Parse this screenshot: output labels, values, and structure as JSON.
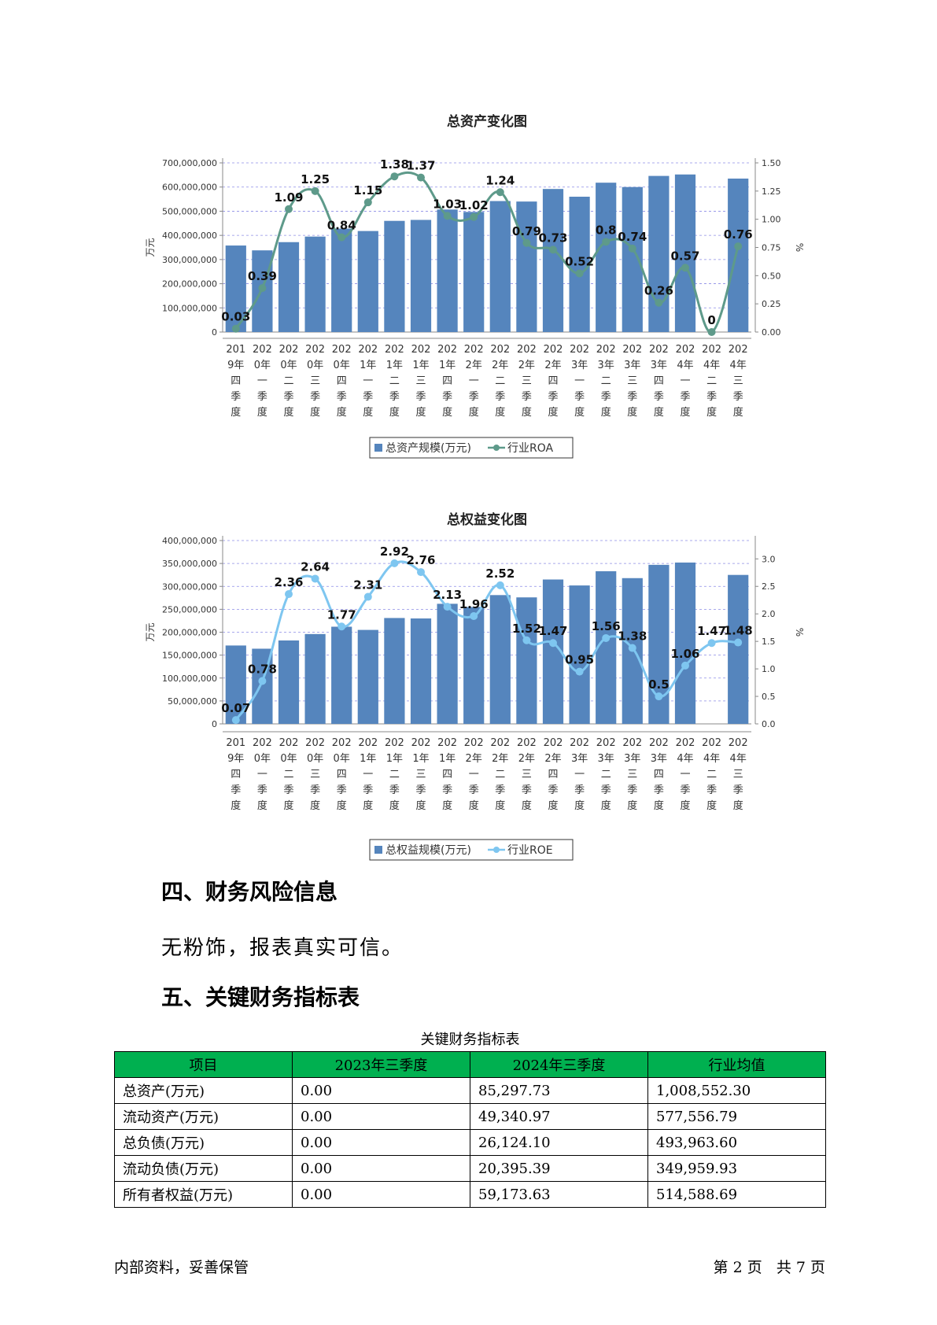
{
  "chart_data": [
    {
      "type": "bar",
      "title": "总资产变化图",
      "ylabel": "万元",
      "y2label": "%",
      "ylim": [
        0,
        700000000
      ],
      "y2lim": [
        0,
        1.5
      ],
      "yticks": [
        "0",
        "100,000,000",
        "200,000,000",
        "300,000,000",
        "400,000,000",
        "500,000,000",
        "600,000,000",
        "700,000,000"
      ],
      "y2ticks": [
        "0.00",
        "0.25",
        "0.50",
        "0.75",
        "1.00",
        "1.25",
        "1.50"
      ],
      "categories": [
        [
          "201",
          "9年",
          "四",
          "季",
          "度"
        ],
        [
          "202",
          "0年",
          "一",
          "季",
          "度"
        ],
        [
          "202",
          "0年",
          "二",
          "季",
          "度"
        ],
        [
          "202",
          "0年",
          "三",
          "季",
          "度"
        ],
        [
          "202",
          "0年",
          "四",
          "季",
          "度"
        ],
        [
          "202",
          "1年",
          "一",
          "季",
          "度"
        ],
        [
          "202",
          "1年",
          "二",
          "季",
          "度"
        ],
        [
          "202",
          "1年",
          "三",
          "季",
          "度"
        ],
        [
          "202",
          "1年",
          "四",
          "季",
          "度"
        ],
        [
          "202",
          "2年",
          "一",
          "季",
          "度"
        ],
        [
          "202",
          "2年",
          "二",
          "季",
          "度"
        ],
        [
          "202",
          "2年",
          "三",
          "季",
          "度"
        ],
        [
          "202",
          "2年",
          "四",
          "季",
          "度"
        ],
        [
          "202",
          "3年",
          "一",
          "季",
          "度"
        ],
        [
          "202",
          "3年",
          "二",
          "季",
          "度"
        ],
        [
          "202",
          "3年",
          "三",
          "季",
          "度"
        ],
        [
          "202",
          "3年",
          "四",
          "季",
          "度"
        ],
        [
          "202",
          "4年",
          "一",
          "季",
          "度"
        ],
        [
          "202",
          "4年",
          "二",
          "季",
          "度"
        ],
        [
          "202",
          "4年",
          "三",
          "季",
          "度"
        ]
      ],
      "series": [
        {
          "name": "总资产规模(万元)",
          "type": "bar",
          "color": "#5585bd",
          "values": [
            358000000,
            338000000,
            372000000,
            395000000,
            428000000,
            418000000,
            460000000,
            464000000,
            507000000,
            497000000,
            542000000,
            540000000,
            592000000,
            560000000,
            618000000,
            600000000,
            646000000,
            652000000,
            null,
            635000000
          ]
        },
        {
          "name": "行业ROA",
          "type": "line",
          "color": "#5e9a8a",
          "values": [
            0.03,
            0.39,
            1.09,
            1.25,
            0.84,
            1.15,
            1.38,
            1.37,
            1.03,
            1.02,
            1.24,
            0.79,
            0.73,
            0.52,
            0.8,
            0.74,
            0.26,
            0.57,
            0,
            0.76
          ],
          "labels": [
            "0.03",
            "0.39",
            "1.09",
            "1.25",
            "0.84",
            "1.15",
            "1.38",
            "1.37",
            "1.03",
            "1.02",
            "1.24",
            "0.79",
            "0.73",
            "0.52",
            "0.8",
            "0.74",
            "0.26",
            "0.57",
            "0",
            "0.76"
          ]
        }
      ],
      "grid": true,
      "legend": "bottom"
    },
    {
      "type": "bar",
      "title": "总权益变化图",
      "ylabel": "万元",
      "y2label": "%",
      "ylim": [
        0,
        400000000
      ],
      "y2lim": [
        0,
        3.3333
      ],
      "yticks": [
        "0",
        "50,000,000",
        "100,000,000",
        "150,000,000",
        "200,000,000",
        "250,000,000",
        "300,000,000",
        "350,000,000",
        "400,000,000"
      ],
      "y2ticks": [
        "0.0",
        "0.5",
        "1.0",
        "1.5",
        "2.0",
        "2.5",
        "3.0"
      ],
      "categories": [
        [
          "201",
          "9年",
          "四",
          "季",
          "度"
        ],
        [
          "202",
          "0年",
          "一",
          "季",
          "度"
        ],
        [
          "202",
          "0年",
          "二",
          "季",
          "度"
        ],
        [
          "202",
          "0年",
          "三",
          "季",
          "度"
        ],
        [
          "202",
          "0年",
          "四",
          "季",
          "度"
        ],
        [
          "202",
          "1年",
          "一",
          "季",
          "度"
        ],
        [
          "202",
          "1年",
          "二",
          "季",
          "度"
        ],
        [
          "202",
          "1年",
          "三",
          "季",
          "度"
        ],
        [
          "202",
          "1年",
          "四",
          "季",
          "度"
        ],
        [
          "202",
          "2年",
          "一",
          "季",
          "度"
        ],
        [
          "202",
          "2年",
          "二",
          "季",
          "度"
        ],
        [
          "202",
          "2年",
          "三",
          "季",
          "度"
        ],
        [
          "202",
          "2年",
          "四",
          "季",
          "度"
        ],
        [
          "202",
          "3年",
          "一",
          "季",
          "度"
        ],
        [
          "202",
          "3年",
          "二",
          "季",
          "度"
        ],
        [
          "202",
          "3年",
          "三",
          "季",
          "度"
        ],
        [
          "202",
          "3年",
          "四",
          "季",
          "度"
        ],
        [
          "202",
          "4年",
          "一",
          "季",
          "度"
        ],
        [
          "202",
          "4年",
          "二",
          "季",
          "度"
        ],
        [
          "202",
          "4年",
          "三",
          "季",
          "度"
        ]
      ],
      "series": [
        {
          "name": "总权益规模(万元)",
          "type": "bar",
          "color": "#5585bd",
          "values": [
            171000000,
            164000000,
            182000000,
            196000000,
            212000000,
            205000000,
            231000000,
            230000000,
            262000000,
            255000000,
            281000000,
            276000000,
            315000000,
            302000000,
            333000000,
            318000000,
            347000000,
            352000000,
            null,
            325000000
          ]
        },
        {
          "name": "行业ROE",
          "type": "line",
          "color": "#7ec6f0",
          "values": [
            0.07,
            0.78,
            2.36,
            2.64,
            1.77,
            2.31,
            2.92,
            2.76,
            2.13,
            1.96,
            2.52,
            1.52,
            1.47,
            0.95,
            1.56,
            1.38,
            0.5,
            1.06,
            1.47,
            1.48
          ],
          "labels": [
            "0.07",
            "0.78",
            "2.36",
            "2.64",
            "1.77",
            "2.31",
            "2.92",
            "2.76",
            "2.13",
            "1.96",
            "2.52",
            "1.52",
            "1.47",
            "0.95",
            "1.56",
            "1.38",
            "0.5",
            "1.06",
            "1.47",
            "1.48"
          ]
        }
      ],
      "grid": true,
      "legend": "bottom"
    }
  ],
  "section4": {
    "heading": "四、财务风险信息",
    "text": "无粉饰，报表真实可信。"
  },
  "section5": {
    "heading": "五、关键财务指标表"
  },
  "table": {
    "caption": "关键财务指标表",
    "header_color": "#00b050",
    "headers": [
      "项目",
      "2023年三季度",
      "2024年三季度",
      "行业均值"
    ],
    "rows": [
      [
        "总资产(万元)",
        "0.00",
        "85,297.73",
        "1,008,552.30"
      ],
      [
        "流动资产(万元)",
        "0.00",
        "49,340.97",
        "577,556.79"
      ],
      [
        "总负债(万元)",
        "0.00",
        "26,124.10",
        "493,963.60"
      ],
      [
        "流动负债(万元)",
        "0.00",
        "20,395.39",
        "349,959.93"
      ],
      [
        "所有者权益(万元)",
        "0.00",
        "59,173.63",
        "514,588.69"
      ]
    ]
  },
  "footer": {
    "left": "内部资料，妥善保管",
    "right": "第 2 页   共 7 页"
  }
}
